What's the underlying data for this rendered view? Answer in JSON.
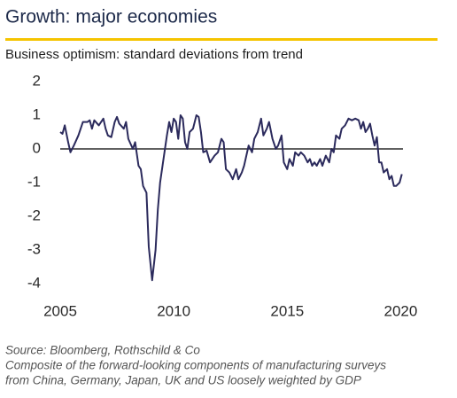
{
  "chart_data": {
    "type": "line",
    "title": "Growth: major economies",
    "subtitle": "Business optimism: standard deviations from trend",
    "source": "Source: Bloomberg, Rothschild & Co",
    "note": [
      "Composite of the forward-looking components of manufacturing surveys",
      "from China, Germany, Japan, UK and US loosely weighted by GDP"
    ],
    "color": "#2b2a5c",
    "accent_color": "#f5c400",
    "zero_line": true,
    "x": [
      2005.0,
      2005.1,
      2005.2,
      2005.35,
      2005.45,
      2005.6,
      2005.8,
      2006.0,
      2006.2,
      2006.3,
      2006.4,
      2006.5,
      2006.7,
      2006.9,
      2007.0,
      2007.1,
      2007.25,
      2007.4,
      2007.5,
      2007.6,
      2007.8,
      2007.9,
      2008.0,
      2008.2,
      2008.3,
      2008.45,
      2008.55,
      2008.65,
      2008.8,
      2008.9,
      2009.05,
      2009.2,
      2009.3,
      2009.4,
      2009.55,
      2009.7,
      2009.8,
      2009.9,
      2010.0,
      2010.1,
      2010.2,
      2010.3,
      2010.4,
      2010.5,
      2010.6,
      2010.7,
      2010.85,
      2011.0,
      2011.1,
      2011.2,
      2011.3,
      2011.45,
      2011.6,
      2011.8,
      2011.95,
      2012.1,
      2012.2,
      2012.3,
      2012.45,
      2012.6,
      2012.75,
      2012.85,
      2013.0,
      2013.1,
      2013.3,
      2013.45,
      2013.55,
      2013.7,
      2013.85,
      2013.95,
      2014.1,
      2014.2,
      2014.35,
      2014.5,
      2014.6,
      2014.75,
      2014.85,
      2015.0,
      2015.1,
      2015.25,
      2015.35,
      2015.5,
      2015.6,
      2015.75,
      2015.9,
      2016.0,
      2016.1,
      2016.2,
      2016.3,
      2016.45,
      2016.55,
      2016.7,
      2016.85,
      2016.95,
      2017.05,
      2017.15,
      2017.3,
      2017.4,
      2017.55,
      2017.7,
      2017.85,
      2018.0,
      2018.15,
      2018.25,
      2018.35,
      2018.45,
      2018.55,
      2018.65,
      2018.75,
      2018.85,
      2018.95,
      2019.05,
      2019.15,
      2019.25,
      2019.4,
      2019.5,
      2019.6,
      2019.7,
      2019.8,
      2019.95,
      2020.05
    ],
    "values": [
      0.5,
      0.45,
      0.7,
      0.2,
      -0.1,
      0.1,
      0.4,
      0.8,
      0.8,
      0.85,
      0.6,
      0.85,
      0.7,
      0.9,
      0.6,
      0.4,
      0.35,
      0.8,
      0.95,
      0.75,
      0.6,
      0.8,
      0.3,
      0.0,
      0.2,
      -0.5,
      -0.6,
      -1.1,
      -1.3,
      -2.9,
      -3.9,
      -3.0,
      -1.8,
      -1.0,
      -0.3,
      0.4,
      0.8,
      0.5,
      0.9,
      0.8,
      0.3,
      1.0,
      0.9,
      0.2,
      0.0,
      0.5,
      0.6,
      1.0,
      0.95,
      0.5,
      -0.1,
      -0.05,
      -0.4,
      -0.2,
      -0.1,
      0.3,
      0.2,
      -0.6,
      -0.7,
      -0.9,
      -0.6,
      -0.9,
      -0.7,
      -0.5,
      0.1,
      -0.1,
      0.3,
      0.5,
      0.9,
      0.4,
      0.6,
      0.8,
      0.3,
      0.0,
      0.1,
      0.4,
      -0.4,
      -0.6,
      -0.3,
      -0.5,
      -0.1,
      -0.2,
      -0.1,
      -0.2,
      -0.4,
      -0.3,
      -0.5,
      -0.4,
      -0.5,
      -0.3,
      -0.5,
      -0.2,
      -0.4,
      0.0,
      -0.1,
      0.4,
      0.3,
      0.6,
      0.7,
      0.9,
      0.85,
      0.9,
      0.85,
      0.6,
      0.8,
      0.5,
      0.6,
      0.75,
      0.4,
      0.1,
      0.35,
      -0.4,
      -0.4,
      -0.7,
      -0.6,
      -0.9,
      -0.8,
      -1.1,
      -1.1,
      -1.0,
      -0.75
    ],
    "xlim": [
      2005,
      2020.1
    ],
    "xticks": [
      2005,
      2010,
      2015,
      2020
    ],
    "ylim": [
      -4,
      2
    ],
    "yticks": [
      2,
      1,
      0,
      -1,
      -2,
      -3,
      -4
    ]
  }
}
